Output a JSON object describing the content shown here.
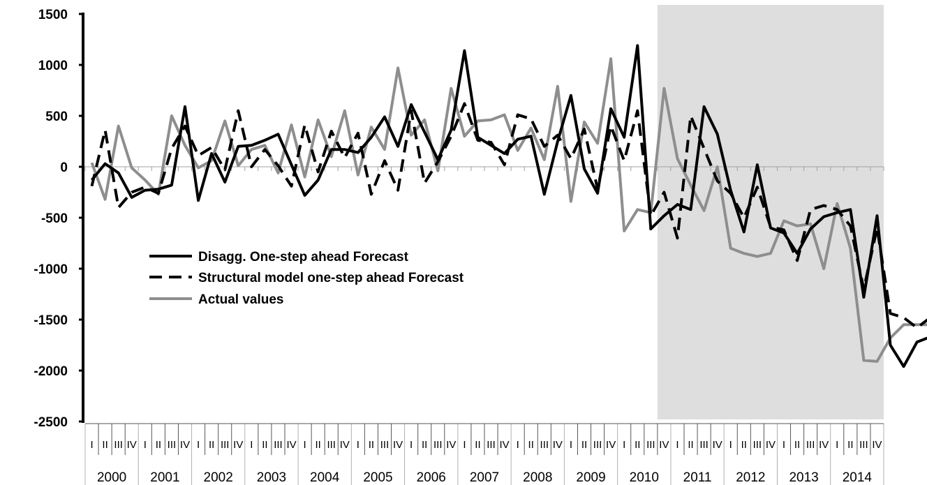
{
  "chart_data": {
    "type": "line",
    "title": "",
    "xlabel": "",
    "ylabel": "",
    "ylim": [
      -2500,
      1500
    ],
    "yticks": [
      "1500",
      "1000",
      "500",
      "0",
      "-500",
      "-1000",
      "-1500",
      "-2000",
      "-2500"
    ],
    "ytick_values": [
      1500,
      1000,
      500,
      0,
      -500,
      -1000,
      -1500,
      -2000,
      -2500
    ],
    "years": [
      "2000",
      "2001",
      "2002",
      "2003",
      "2004",
      "2005",
      "2006",
      "2007",
      "2008",
      "2009",
      "2010",
      "2011",
      "2012",
      "2013",
      "2014"
    ],
    "quarters": [
      "I",
      "II",
      "III",
      "IV"
    ],
    "shaded_region": {
      "from": "2010 Q4",
      "to": "2014 Q4",
      "color": "#dedede"
    },
    "grid": false,
    "legend_position": "left-center",
    "series": [
      {
        "name": "Disagg. One-step ahead Forecast",
        "style": "solid",
        "color": "#000000",
        "values": [
          -130,
          30,
          -60,
          -300,
          -230,
          -220,
          -180,
          590,
          -330,
          130,
          -150,
          200,
          210,
          260,
          320,
          20,
          -280,
          -130,
          170,
          170,
          140,
          290,
          490,
          200,
          610,
          340,
          70,
          360,
          1140,
          290,
          210,
          130,
          270,
          300,
          -270,
          250,
          700,
          -20,
          -260,
          570,
          290,
          1190,
          -610,
          -480,
          -370,
          -420,
          590,
          320,
          -230,
          -640,
          20,
          -600,
          -650,
          -850,
          -610,
          -490,
          -450,
          -420,
          -1280,
          -480,
          -1750,
          -1960,
          -1720,
          -1670
        ]
      },
      {
        "name": "Structural model one-step ahead Forecast",
        "style": "dashed",
        "color": "#000000",
        "values": [
          -190,
          360,
          -400,
          -250,
          -200,
          -260,
          180,
          400,
          110,
          190,
          -30,
          550,
          0,
          170,
          10,
          -190,
          410,
          -50,
          350,
          90,
          330,
          -270,
          60,
          -230,
          550,
          -160,
          50,
          300,
          620,
          260,
          240,
          20,
          510,
          470,
          200,
          310,
          80,
          370,
          -220,
          400,
          60,
          550,
          -480,
          -250,
          -700,
          500,
          180,
          -140,
          -260,
          -500,
          -200,
          -590,
          -620,
          -920,
          -420,
          -380,
          -420,
          -580,
          -1200,
          -600,
          -1440,
          -1480,
          -1580,
          -1480
        ]
      },
      {
        "name": "Actual values",
        "style": "solid",
        "color": "#8e8e8e",
        "values": [
          40,
          -320,
          400,
          -10,
          -130,
          -270,
          500,
          210,
          -10,
          60,
          450,
          10,
          170,
          210,
          -60,
          410,
          -100,
          460,
          100,
          550,
          -80,
          390,
          170,
          970,
          310,
          460,
          -40,
          770,
          300,
          450,
          460,
          510,
          160,
          380,
          70,
          790,
          -340,
          440,
          230,
          1060,
          -630,
          -420,
          -450,
          770,
          80,
          -180,
          -430,
          0,
          -800,
          -850,
          -880,
          -850,
          -530,
          -580,
          -560,
          -1000,
          -360,
          -800,
          -1900,
          -1910,
          -1680,
          -1550,
          -1550,
          -1550
        ]
      }
    ]
  }
}
